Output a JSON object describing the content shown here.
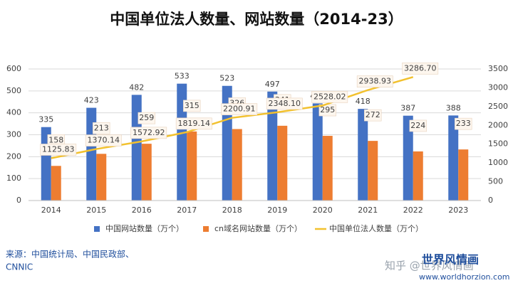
{
  "chart_data": {
    "type": "bar",
    "title": "中国单位法人数量、网站数量（2014-23）",
    "categories": [
      "2014",
      "2015",
      "2016",
      "2017",
      "2018",
      "2019",
      "2020",
      "2021",
      "2022",
      "2023"
    ],
    "series": [
      {
        "name": "中国网站数量（万个）",
        "color": "#4472c4",
        "values": [
          335,
          423,
          482,
          533,
          523,
          497,
          443,
          418,
          387,
          388
        ]
      },
      {
        "name": "cn域名网站数量（万个）",
        "color": "#ed7d31",
        "values": [
          158,
          213,
          259,
          315,
          326,
          341,
          295,
          272,
          224,
          233
        ]
      },
      {
        "name": "中国单位法人数量（万个）",
        "color": "#f2c12e",
        "type": "line",
        "axis": "y2",
        "values": [
          1125.83,
          1370.14,
          1572.92,
          1819.14,
          2200.91,
          2348.1,
          2528.02,
          2938.93,
          3286.7,
          null
        ],
        "value_labels": [
          "1125.83",
          "1370.14",
          "1572.92",
          "1819.14",
          "2200.91",
          "2348.10",
          "2528.02",
          "2938.93",
          "3286.70",
          null
        ]
      }
    ],
    "ylim": [
      0,
      600
    ],
    "yticks": [
      0,
      100,
      200,
      300,
      400,
      500,
      600
    ],
    "y2lim": [
      0,
      3500
    ],
    "y2ticks": [
      0,
      500,
      1000,
      1500,
      2000,
      2500,
      3000,
      3500
    ],
    "grid": true,
    "legend": "bottom",
    "source": [
      "来源：中国统计局、中国民政部、",
      "CNNIC"
    ],
    "watermark": "知乎 @世界风情画",
    "brand": "世界风情画",
    "website": "www.worldhorzion.com"
  }
}
